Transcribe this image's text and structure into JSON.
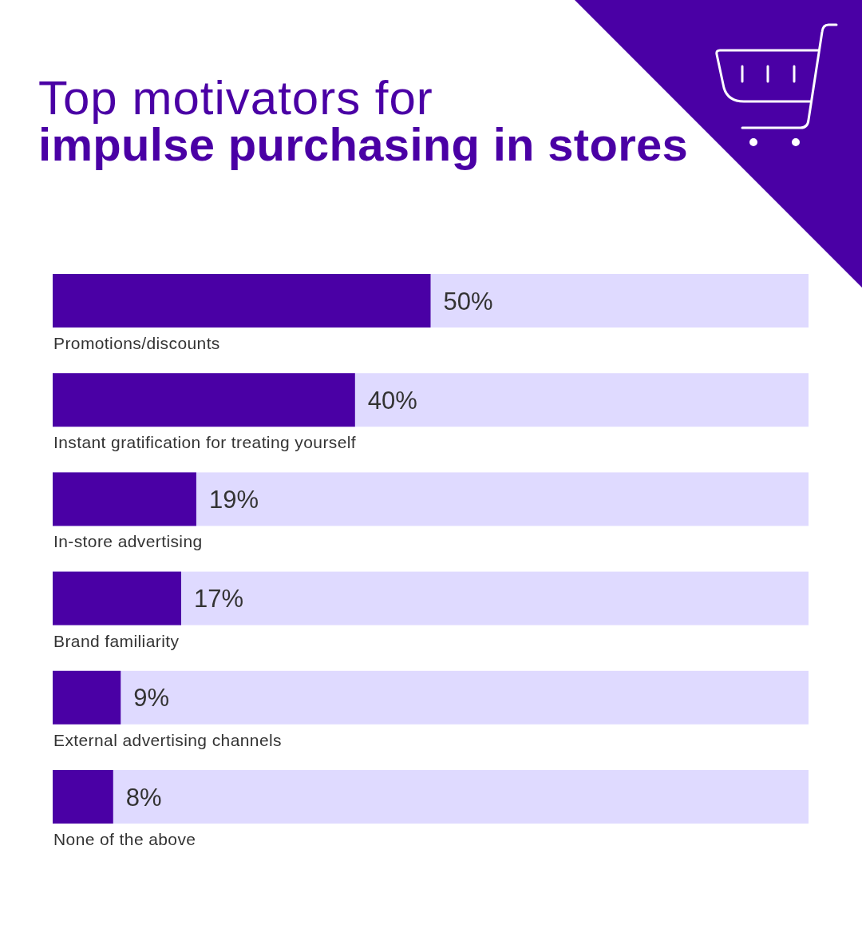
{
  "chart_data": {
    "type": "bar",
    "orientation": "horizontal",
    "title": "Top motivators for\nimpulse purchasing in stores",
    "categories": [
      "Promotions/discounts",
      "Instant gratification for treating yourself",
      "In-store advertising",
      "Brand familiarity",
      "External advertising channels",
      "None of the above"
    ],
    "values": [
      50,
      40,
      19,
      17,
      9,
      8
    ],
    "value_labels": [
      "50%",
      "40%",
      "19%",
      "17%",
      "9%",
      "8%"
    ],
    "color": "#4a00a5",
    "xlim": [
      0,
      100
    ]
  }
}
